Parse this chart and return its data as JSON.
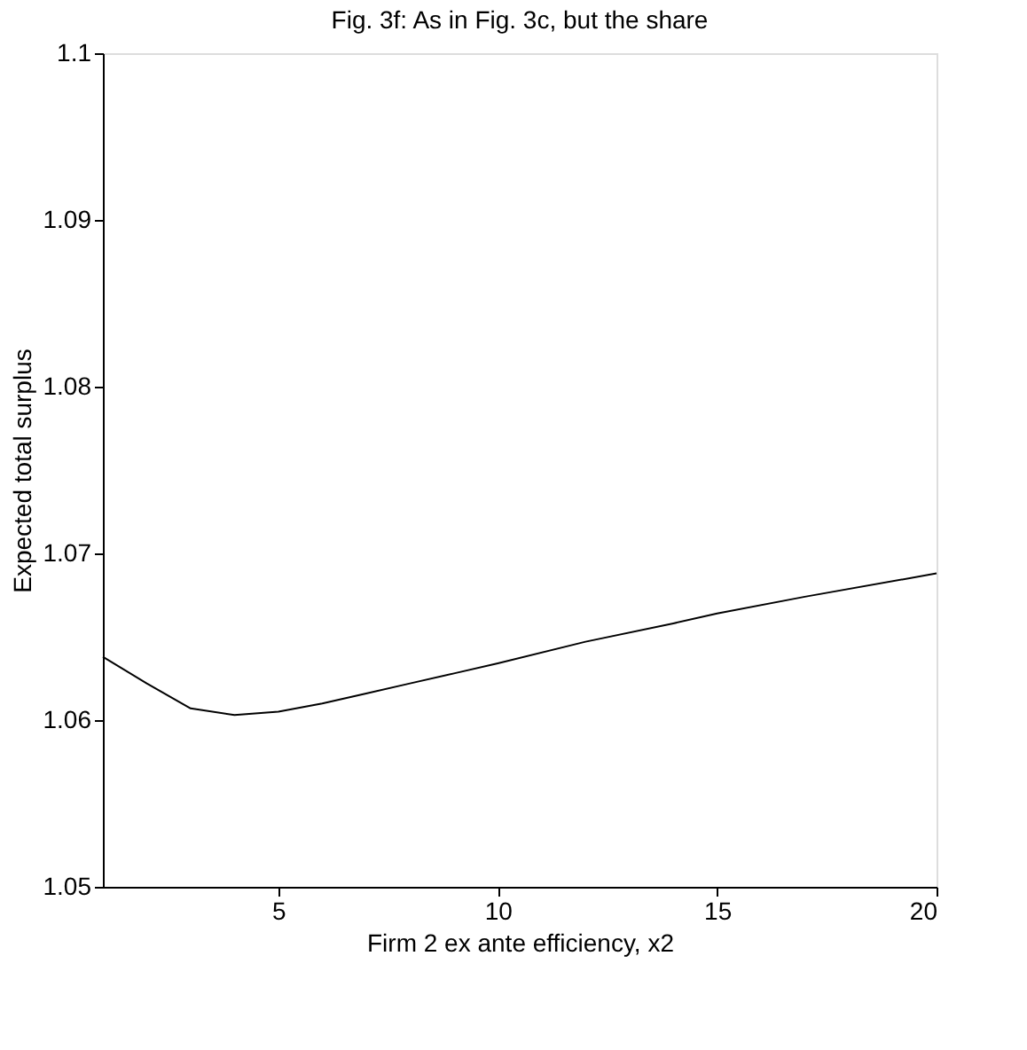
{
  "chart_data": {
    "type": "line",
    "title": "Fig. 3f: As in Fig. 3c, but the share",
    "xlabel": "Firm 2 ex ante efficiency, x2",
    "ylabel": "Expected total surplus",
    "x": [
      1,
      2,
      3,
      4,
      5,
      6,
      7,
      8,
      9,
      10,
      12,
      14,
      15,
      17,
      20
    ],
    "series": [
      {
        "color": "#000000",
        "values": [
          1.0638,
          1.0622,
          1.0607,
          1.0603,
          1.0605,
          1.061,
          1.0616,
          1.0622,
          1.0628,
          1.0634,
          1.0647,
          1.0658,
          1.0664,
          1.0674,
          1.0688
        ]
      }
    ],
    "xlim": [
      1,
      20
    ],
    "xticks": [
      5,
      10,
      15,
      20
    ],
    "ylim": [
      1.05,
      1.1
    ],
    "yticks": [
      1.05,
      1.06,
      1.07,
      1.08,
      1.09,
      1.1
    ],
    "grid": false,
    "legend": false,
    "marker": "none",
    "line_style": "solid"
  }
}
